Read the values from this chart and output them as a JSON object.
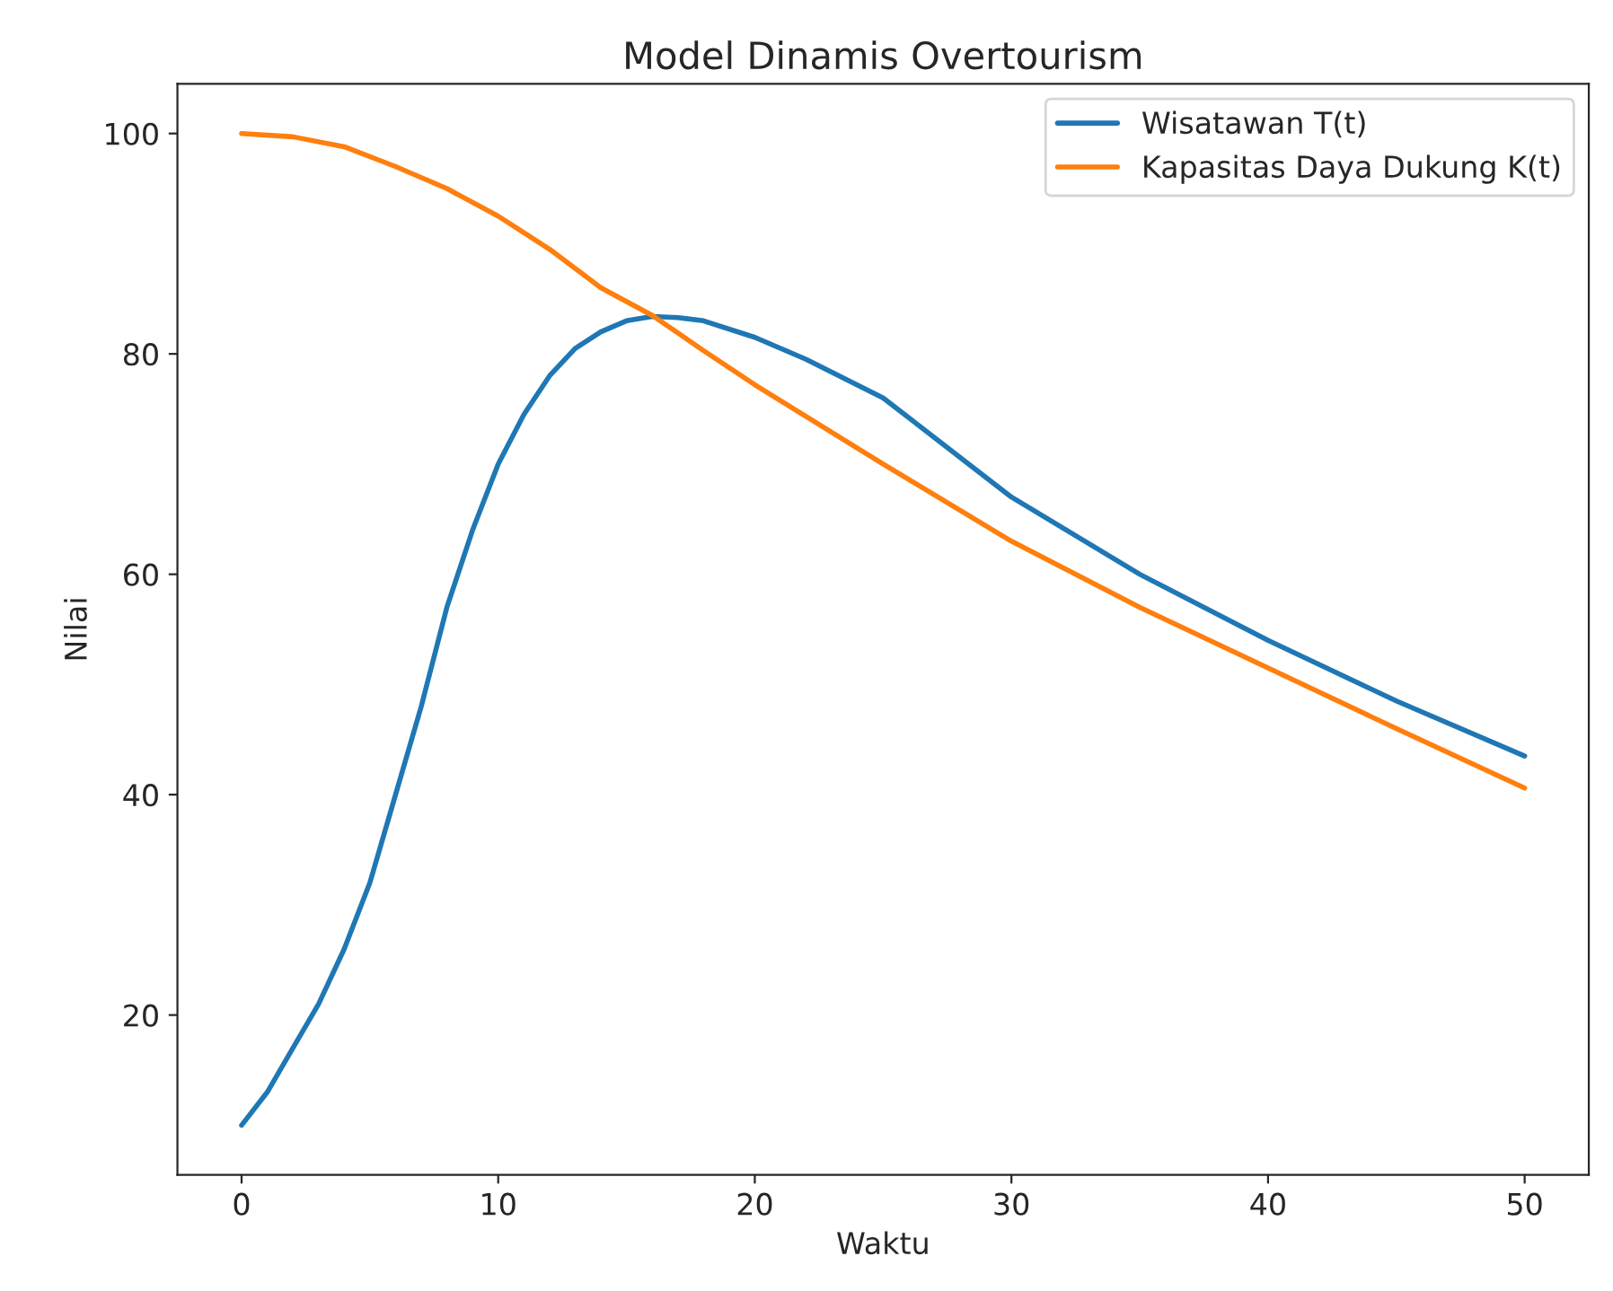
{
  "chart_data": {
    "type": "line",
    "title": "Model Dinamis Overtourism",
    "xlabel": "Waktu",
    "ylabel": "Nilai",
    "xlim": [
      -2.5,
      52.5
    ],
    "ylim": [
      5.5,
      104.5
    ],
    "xticks": [
      0,
      10,
      20,
      30,
      40,
      50
    ],
    "yticks": [
      20,
      40,
      60,
      80,
      100
    ],
    "legend": "top right",
    "grid": false,
    "series": [
      {
        "name": "Wisatawan T(t)",
        "color": "#1f77b4",
        "x": [
          0,
          1,
          2,
          3,
          4,
          5,
          6,
          7,
          8,
          9,
          10,
          11,
          12,
          13,
          14,
          15,
          16,
          17,
          18,
          20,
          22,
          25,
          30,
          35,
          40,
          45,
          50
        ],
        "values": [
          10,
          13,
          17,
          21,
          26,
          32,
          40,
          48,
          57,
          64,
          70,
          74.5,
          78,
          80.5,
          82,
          83,
          83.4,
          83.3,
          83,
          81.5,
          79.5,
          76,
          67,
          60,
          54,
          48.5,
          43.5
        ]
      },
      {
        "name": "Kapasitas Daya Dukung K(t)",
        "color": "#ff7f0e",
        "x": [
          0,
          2,
          4,
          6,
          8,
          10,
          12,
          14,
          16,
          18,
          20,
          25,
          30,
          35,
          40,
          45,
          50
        ],
        "values": [
          100,
          99.7,
          98.8,
          97,
          95,
          92.5,
          89.5,
          86,
          83.5,
          80.3,
          77.2,
          70,
          63,
          57,
          51.5,
          46,
          40.6
        ]
      }
    ]
  }
}
